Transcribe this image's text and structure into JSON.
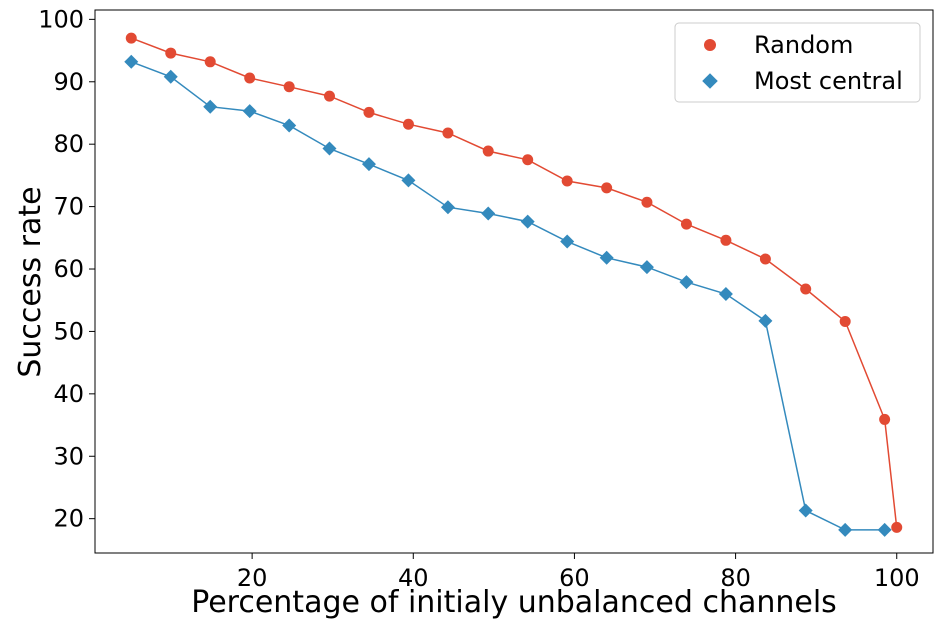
{
  "chart_data": {
    "type": "line",
    "title": "",
    "xlabel": "Percentage of initialy unbalanced channels",
    "ylabel": "Success rate",
    "xlim": [
      0.5,
      104.5
    ],
    "ylim": [
      14.5,
      101.5
    ],
    "xticks": [
      20,
      40,
      60,
      80,
      100
    ],
    "yticks": [
      20,
      30,
      40,
      50,
      60,
      70,
      80,
      90,
      100
    ],
    "grid": false,
    "legend": "top-right",
    "series": [
      {
        "name": "Random",
        "color": "#e24a33",
        "marker": "circle",
        "x": [
          5,
          9.9,
          14.8,
          19.7,
          24.6,
          29.6,
          34.5,
          39.4,
          44.3,
          49.3,
          54.2,
          59.1,
          64,
          69,
          73.9,
          78.8,
          83.7,
          88.7,
          93.6,
          98.5,
          100
        ],
        "y": [
          97,
          94.6,
          93.2,
          90.6,
          89.2,
          87.7,
          85.1,
          83.2,
          81.8,
          78.9,
          77.5,
          74.1,
          73,
          70.7,
          67.2,
          64.6,
          61.6,
          56.8,
          51.6,
          35.9,
          18.6
        ]
      },
      {
        "name": "Most central",
        "color": "#348abd",
        "marker": "diamond",
        "x": [
          5,
          9.9,
          14.8,
          19.7,
          24.6,
          29.6,
          34.5,
          39.4,
          44.3,
          49.3,
          54.2,
          59.1,
          64,
          69,
          73.9,
          78.8,
          83.7,
          88.7,
          93.6,
          98.5
        ],
        "y": [
          93.2,
          90.8,
          86,
          85.3,
          83,
          79.3,
          76.8,
          74.2,
          69.9,
          68.9,
          67.6,
          64.4,
          61.8,
          60.3,
          57.9,
          56,
          51.7,
          21.3,
          18.2,
          18.2
        ]
      }
    ]
  }
}
